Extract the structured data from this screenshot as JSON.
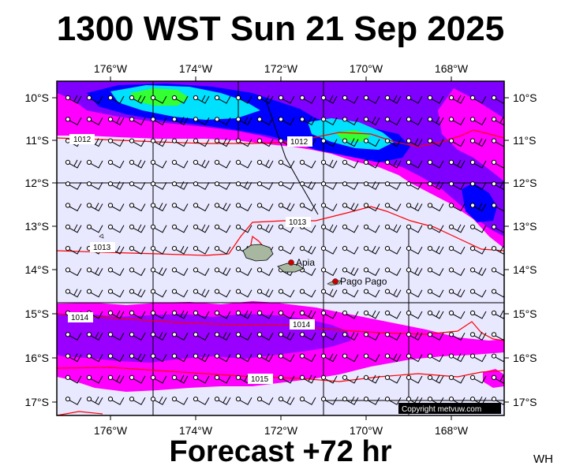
{
  "title": "1300 WST Sun 21 Sep 2025",
  "forecast_label": "Forecast +72 hr",
  "corner_label": "WH",
  "copyright": "Copyright metvuw.com",
  "lon_labels": [
    "176°W",
    "174°W",
    "172°W",
    "170°W",
    "168°W"
  ],
  "lat_labels": [
    "10°S",
    "11°S",
    "12°S",
    "13°S",
    "14°S",
    "15°S",
    "16°S",
    "17°S"
  ],
  "places": [
    {
      "name": "Apia"
    },
    {
      "name": "Pago Pago"
    }
  ],
  "isobar_labels": [
    "1012",
    "1012",
    "1013",
    "1013",
    "1014",
    "1014",
    "1015"
  ],
  "colors": {
    "background": "#e8e8ff",
    "rain_light": "#ff00ff",
    "rain_mid": "#8000ff",
    "rain_heavy": "#0000ff",
    "rain_heavier": "#00ffff",
    "rain_extreme": "#00ff00",
    "isobar": "#ff0000"
  }
}
